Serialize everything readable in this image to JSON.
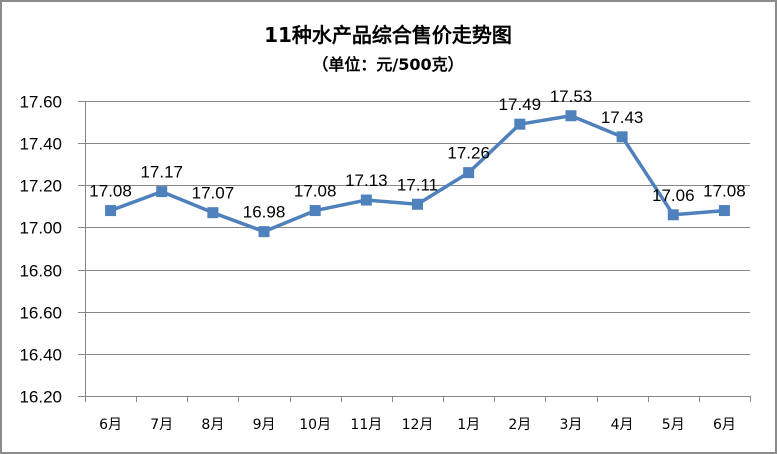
{
  "chart_data": {
    "type": "line",
    "title": "11种水产品综合售价走势图",
    "subtitle": "（单位：元/500克）",
    "xlabel": "",
    "ylabel": "",
    "categories": [
      "6月",
      "7月",
      "8月",
      "9月",
      "10月",
      "11月",
      "12月",
      "1月",
      "2月",
      "3月",
      "4月",
      "5月",
      "6月"
    ],
    "series": [
      {
        "name": "11种水产品综合售价",
        "values": [
          17.08,
          17.17,
          17.07,
          16.98,
          17.08,
          17.13,
          17.11,
          17.26,
          17.49,
          17.53,
          17.43,
          17.06,
          17.08
        ],
        "labels": [
          "17.08",
          "17.17",
          "17.07",
          "16.98",
          "17.08",
          "17.13",
          "17.11",
          "17.26",
          "17.49",
          "17.53",
          "17.43",
          "17.06",
          "17.08"
        ],
        "color": "#4f81bd",
        "marker": "square"
      }
    ],
    "ylim": [
      16.2,
      17.6
    ],
    "yticks": [
      "17.60",
      "17.40",
      "17.20",
      "17.00",
      "16.80",
      "16.60",
      "16.40",
      "16.20"
    ],
    "ytick_values": [
      17.6,
      17.4,
      17.2,
      17.0,
      16.8,
      16.6,
      16.4,
      16.2
    ],
    "grid": true,
    "legend": "none"
  },
  "colors": {
    "line": "#4f81bd",
    "grid": "#878787",
    "border": "#8c8c8c"
  }
}
